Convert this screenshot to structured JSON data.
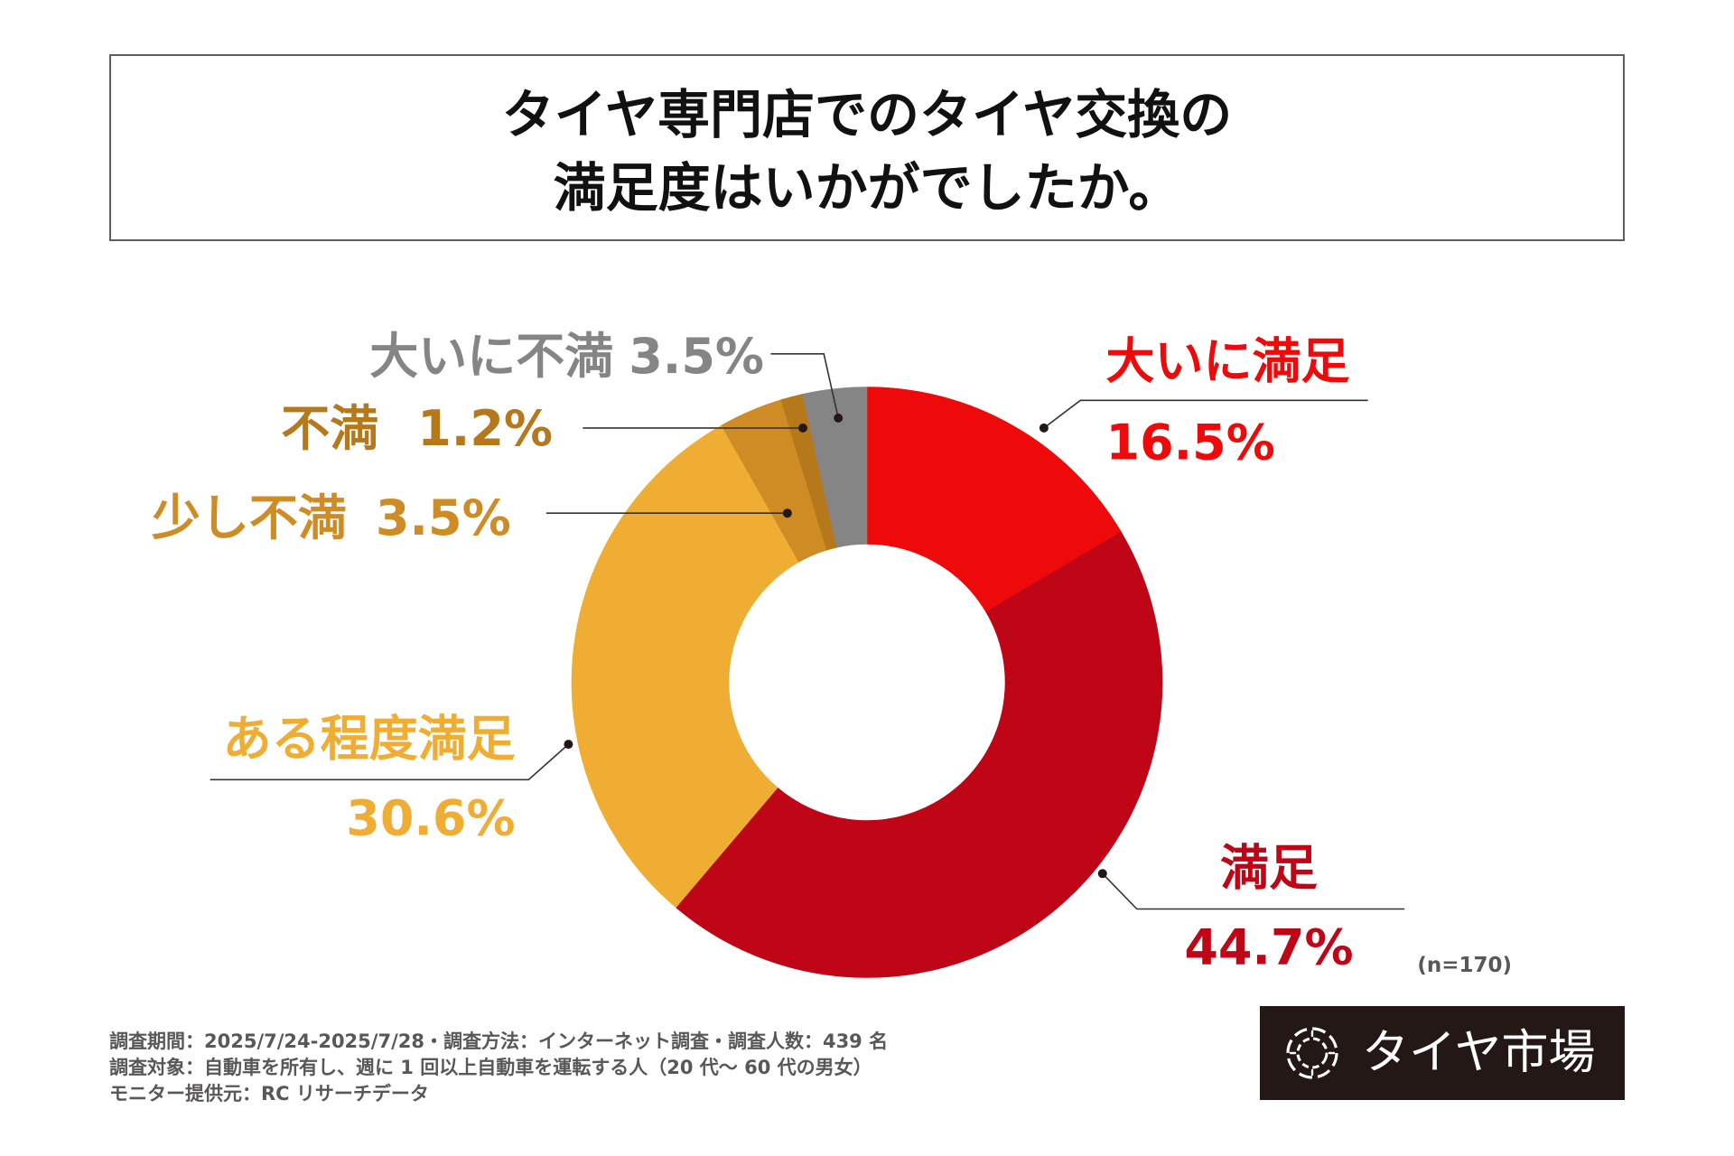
{
  "chart_data": {
    "type": "pie",
    "donut": true,
    "title_lines": [
      "タイヤ専門店でのタイヤ交換の",
      "満足度はいかがでしたか。"
    ],
    "categories": [
      "大いに満足",
      "満足",
      "ある程度満足",
      "少し不満",
      "不満",
      "大いに不満"
    ],
    "values": [
      16.5,
      44.7,
      30.6,
      3.5,
      1.2,
      3.5
    ],
    "data_labels": [
      "16.5%",
      "44.7%",
      "30.6%",
      "3.5%",
      "1.2%",
      "3.5%"
    ],
    "colors": [
      "#EE0A0A",
      "#BE0616",
      "#EFAE33",
      "#CF8C25",
      "#B5781B",
      "#858585"
    ],
    "sample_size_label": "(n=170)"
  },
  "footer": {
    "notes": [
      "調査期間：2025/7/24-2025/7/28・調査方法：インターネット調査・調査人数：439 名",
      "調査対象：自動車を所有し、週に 1 回以上自動車を運転する人（20 代～ 60 代の男女）",
      "モニター提供元：RC リサーチデータ"
    ]
  },
  "logo": {
    "text": "タイヤ市場",
    "icon": "tire-logo-icon",
    "background": "#231815"
  }
}
